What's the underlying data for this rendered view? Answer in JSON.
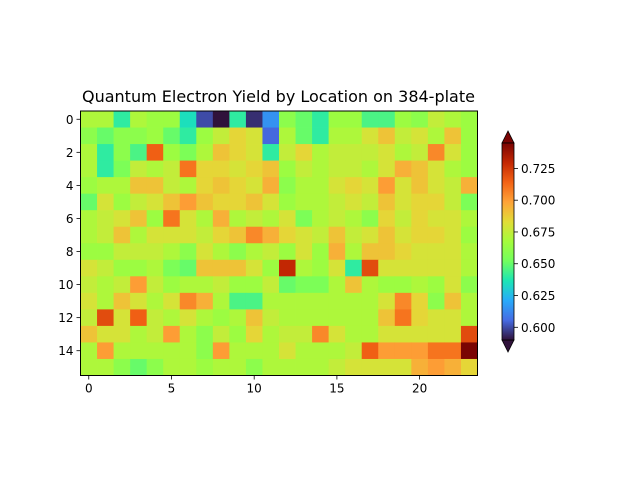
{
  "chart_data": {
    "type": "heatmap",
    "title": "Quantum Electron Yield by Location on 384-plate",
    "xlabel": "",
    "ylabel": "",
    "rows": 16,
    "cols": 24,
    "x_ticks": [
      0,
      5,
      10,
      15,
      20
    ],
    "y_ticks": [
      0,
      2,
      4,
      6,
      8,
      10,
      12,
      14
    ],
    "colormap": "turbo",
    "vmin": 0.59,
    "vmax": 0.745,
    "colorbar_ticks": [
      "0.600",
      "0.625",
      "0.650",
      "0.675",
      "0.700",
      "0.725"
    ],
    "colorbar_tick_values": [
      0.6,
      0.625,
      0.65,
      0.675,
      0.7,
      0.725
    ],
    "colorbar_extend": "both",
    "values": [
      [
        0.67,
        0.67,
        0.64,
        0.67,
        0.665,
        0.665,
        0.635,
        0.6,
        0.59,
        0.64,
        0.595,
        0.615,
        0.66,
        0.65,
        0.64,
        0.665,
        0.665,
        0.645,
        0.645,
        0.665,
        0.66,
        0.675,
        0.67,
        0.665
      ],
      [
        0.66,
        0.65,
        0.66,
        0.66,
        0.665,
        0.65,
        0.64,
        0.665,
        0.675,
        0.685,
        0.68,
        0.605,
        0.67,
        0.65,
        0.64,
        0.67,
        0.67,
        0.68,
        0.69,
        0.675,
        0.68,
        0.67,
        0.69,
        0.665
      ],
      [
        0.67,
        0.64,
        0.66,
        0.645,
        0.715,
        0.665,
        0.655,
        0.67,
        0.69,
        0.685,
        0.68,
        0.64,
        0.675,
        0.685,
        0.67,
        0.675,
        0.675,
        0.675,
        0.68,
        0.67,
        0.675,
        0.705,
        0.68,
        0.665
      ],
      [
        0.67,
        0.64,
        0.655,
        0.675,
        0.67,
        0.675,
        0.71,
        0.685,
        0.685,
        0.68,
        0.685,
        0.69,
        0.665,
        0.675,
        0.67,
        0.675,
        0.675,
        0.67,
        0.68,
        0.695,
        0.69,
        0.68,
        0.67,
        0.665
      ],
      [
        0.665,
        0.67,
        0.67,
        0.69,
        0.69,
        0.675,
        0.67,
        0.685,
        0.69,
        0.685,
        0.68,
        0.695,
        0.66,
        0.67,
        0.67,
        0.68,
        0.685,
        0.68,
        0.7,
        0.68,
        0.69,
        0.68,
        0.675,
        0.695
      ],
      [
        0.65,
        0.68,
        0.665,
        0.675,
        0.68,
        0.69,
        0.7,
        0.69,
        0.685,
        0.685,
        0.69,
        0.68,
        0.665,
        0.67,
        0.67,
        0.675,
        0.68,
        0.675,
        0.69,
        0.68,
        0.685,
        0.685,
        0.675,
        0.655
      ],
      [
        0.67,
        0.675,
        0.68,
        0.69,
        0.665,
        0.71,
        0.68,
        0.67,
        0.695,
        0.67,
        0.675,
        0.67,
        0.68,
        0.655,
        0.67,
        0.675,
        0.67,
        0.66,
        0.685,
        0.675,
        0.685,
        0.68,
        0.68,
        0.67
      ],
      [
        0.67,
        0.675,
        0.69,
        0.67,
        0.68,
        0.68,
        0.68,
        0.675,
        0.685,
        0.69,
        0.705,
        0.695,
        0.685,
        0.68,
        0.675,
        0.69,
        0.675,
        0.68,
        0.69,
        0.68,
        0.685,
        0.685,
        0.68,
        0.665
      ],
      [
        0.665,
        0.665,
        0.675,
        0.675,
        0.675,
        0.67,
        0.66,
        0.68,
        0.67,
        0.66,
        0.67,
        0.675,
        0.665,
        0.68,
        0.665,
        0.695,
        0.67,
        0.69,
        0.69,
        0.685,
        0.68,
        0.68,
        0.68,
        0.67
      ],
      [
        0.68,
        0.675,
        0.665,
        0.665,
        0.67,
        0.655,
        0.65,
        0.69,
        0.69,
        0.69,
        0.68,
        0.665,
        0.73,
        0.67,
        0.665,
        0.68,
        0.64,
        0.72,
        0.68,
        0.68,
        0.68,
        0.68,
        0.68,
        0.67
      ],
      [
        0.675,
        0.67,
        0.675,
        0.7,
        0.675,
        0.665,
        0.67,
        0.67,
        0.675,
        0.665,
        0.665,
        0.675,
        0.65,
        0.655,
        0.655,
        0.67,
        0.69,
        0.67,
        0.665,
        0.665,
        0.67,
        0.665,
        0.68,
        0.66
      ],
      [
        0.68,
        0.67,
        0.69,
        0.68,
        0.67,
        0.68,
        0.705,
        0.695,
        0.67,
        0.645,
        0.645,
        0.67,
        0.67,
        0.67,
        0.67,
        0.67,
        0.67,
        0.67,
        0.68,
        0.705,
        0.685,
        0.66,
        0.69,
        0.67
      ],
      [
        0.675,
        0.72,
        0.68,
        0.715,
        0.675,
        0.67,
        0.68,
        0.67,
        0.665,
        0.67,
        0.69,
        0.675,
        0.67,
        0.67,
        0.67,
        0.67,
        0.67,
        0.67,
        0.69,
        0.71,
        0.685,
        0.68,
        0.68,
        0.67
      ],
      [
        0.69,
        0.68,
        0.68,
        0.67,
        0.675,
        0.7,
        0.67,
        0.66,
        0.675,
        0.665,
        0.685,
        0.67,
        0.675,
        0.675,
        0.705,
        0.68,
        0.67,
        0.67,
        0.68,
        0.68,
        0.68,
        0.68,
        0.68,
        0.72
      ],
      [
        0.67,
        0.7,
        0.67,
        0.67,
        0.67,
        0.67,
        0.67,
        0.66,
        0.7,
        0.67,
        0.67,
        0.67,
        0.68,
        0.67,
        0.67,
        0.67,
        0.675,
        0.715,
        0.7,
        0.7,
        0.7,
        0.71,
        0.71,
        0.745
      ],
      [
        0.67,
        0.67,
        0.66,
        0.65,
        0.66,
        0.67,
        0.67,
        0.665,
        0.67,
        0.67,
        0.66,
        0.67,
        0.67,
        0.67,
        0.67,
        0.675,
        0.68,
        0.68,
        0.68,
        0.68,
        0.695,
        0.7,
        0.695,
        0.685
      ]
    ]
  }
}
